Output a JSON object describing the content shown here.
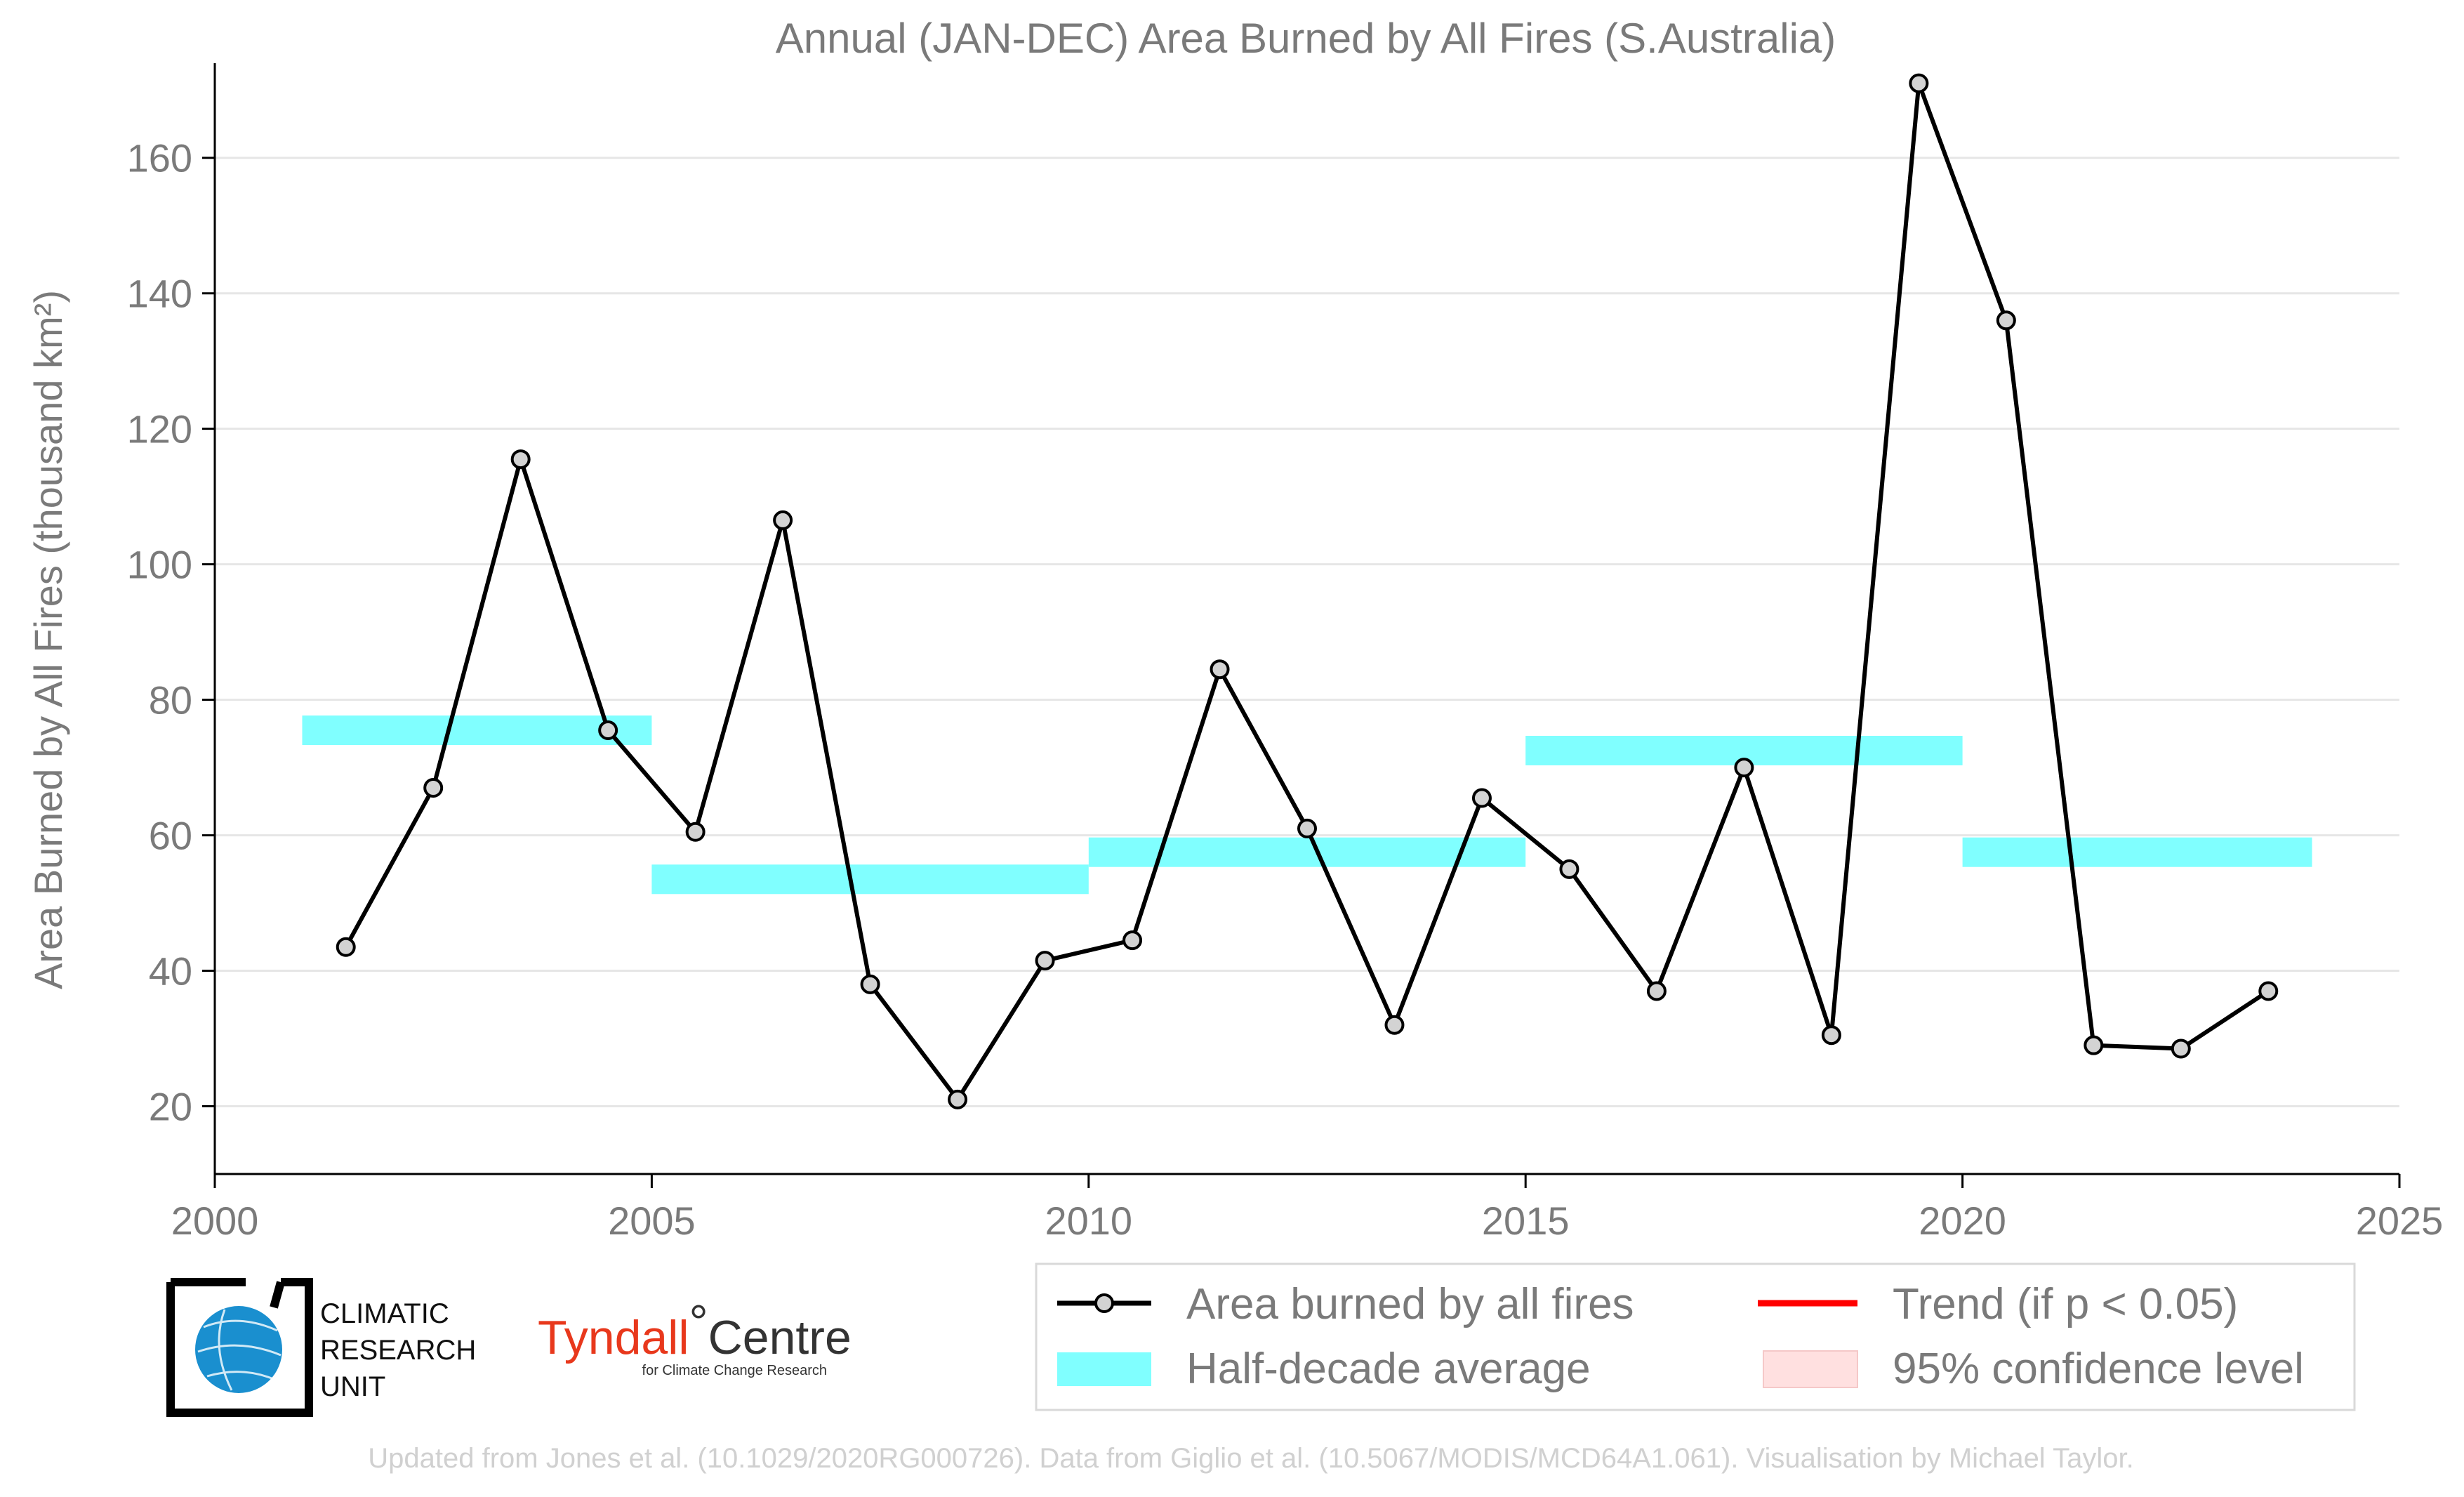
{
  "colors": {
    "line": "#000000",
    "marker_fill": "#d3d3d3",
    "half_decade": "#80ffff",
    "trend": "#ff0000",
    "confidence": "#ffe0e0",
    "text": "#7a7a7a",
    "grid": "#e6e6e6",
    "tyndall_red": "#e8381c",
    "globe_blue": "#1a8fcf"
  },
  "logos": {
    "cru": [
      "CLIMATIC",
      "RESEARCH",
      "UNIT"
    ],
    "tyndall": {
      "name": "Tyndall",
      "degree": "°",
      "centre": "Centre",
      "sub": "for Climate Change Research"
    }
  },
  "footer": "Updated from Jones et al. (10.1029/2020RG000726). Data from Giglio et al. (10.5067/MODIS/MCD64A1.061). Visualisation by Michael Taylor.",
  "chart_data": {
    "type": "line",
    "title": "Annual (JAN-DEC) Area Burned by All Fires (S.Australia)",
    "ylabel": "Area Burned by All Fires (thousand km²)",
    "xlabel": "",
    "xlim": [
      2000,
      2025
    ],
    "ylim": [
      10,
      175
    ],
    "xticks": [
      2000,
      2005,
      2010,
      2015,
      2020,
      2025
    ],
    "yticks": [
      20,
      40,
      60,
      80,
      100,
      120,
      140,
      160
    ],
    "grid": "horizontal",
    "legend_position": "bottom-right",
    "series": [
      {
        "name": "Area burned by all fires",
        "x": [
          2001.5,
          2002.5,
          2003.5,
          2004.5,
          2005.5,
          2006.5,
          2007.5,
          2008.5,
          2009.5,
          2010.5,
          2011.5,
          2012.5,
          2013.5,
          2014.5,
          2015.5,
          2016.5,
          2017.5,
          2018.5,
          2019.5,
          2020.5,
          2021.5,
          2022.5,
          2023.5
        ],
        "values": [
          43.5,
          67,
          115.5,
          75.5,
          60.5,
          106.5,
          38,
          21,
          41.5,
          44.5,
          84.5,
          61,
          32,
          65.5,
          55,
          37,
          70,
          30.5,
          171,
          136,
          29,
          28.5,
          37
        ]
      }
    ],
    "half_decade_average": {
      "name": "Half-decade average",
      "segments": [
        {
          "x": [
            2001,
            2005
          ],
          "value": 75.5
        },
        {
          "x": [
            2005,
            2010
          ],
          "value": 53.5
        },
        {
          "x": [
            2010,
            2015
          ],
          "value": 57.5
        },
        {
          "x": [
            2015,
            2020
          ],
          "value": 72.5
        },
        {
          "x": [
            2020,
            2024
          ],
          "value": 57.5
        }
      ]
    },
    "legend": [
      "Area burned by all fires",
      "Trend (if p < 0.05)",
      "Half-decade average",
      "95% confidence level"
    ]
  }
}
